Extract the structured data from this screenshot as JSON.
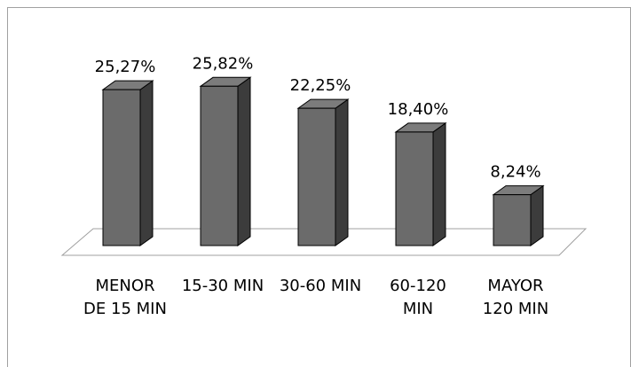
{
  "chart_data": {
    "type": "bar3d",
    "categories": [
      "MENOR DE 15 MIN",
      "15-30 MIN",
      "30-60 MIN",
      "60-120 MIN",
      "MAYOR 120 MIN"
    ],
    "values": [
      25.27,
      25.82,
      22.25,
      18.4,
      8.24
    ],
    "value_labels": [
      "25,27%",
      "25,82%",
      "22,25%",
      "18,40%",
      "8,24%"
    ],
    "color": "#6b6b6b"
  }
}
